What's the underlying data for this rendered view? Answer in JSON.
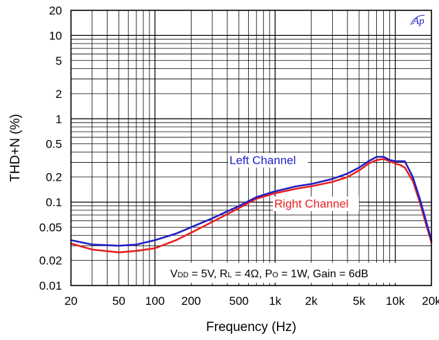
{
  "chart_data": {
    "type": "line",
    "xlabel": "Frequency (Hz)",
    "ylabel": "THD+N (%)",
    "x_scale": "log",
    "y_scale": "log",
    "xlim": [
      20,
      20000
    ],
    "ylim": [
      0.01,
      20
    ],
    "x_ticks": [
      {
        "value": 20,
        "label": "20"
      },
      {
        "value": 50,
        "label": "50"
      },
      {
        "value": 100,
        "label": "100"
      },
      {
        "value": 200,
        "label": "200"
      },
      {
        "value": 500,
        "label": "500"
      },
      {
        "value": 1000,
        "label": "1k"
      },
      {
        "value": 2000,
        "label": "2k"
      },
      {
        "value": 5000,
        "label": "5k"
      },
      {
        "value": 10000,
        "label": "10k"
      },
      {
        "value": 20000,
        "label": "20k"
      }
    ],
    "y_ticks": [
      {
        "value": 0.01,
        "label": "0.01"
      },
      {
        "value": 0.02,
        "label": "0.02"
      },
      {
        "value": 0.05,
        "label": "0.05"
      },
      {
        "value": 0.1,
        "label": "0.1"
      },
      {
        "value": 0.2,
        "label": "0.2"
      },
      {
        "value": 0.5,
        "label": "0.5"
      },
      {
        "value": 1,
        "label": "1"
      },
      {
        "value": 2,
        "label": "2"
      },
      {
        "value": 5,
        "label": "5"
      },
      {
        "value": 10,
        "label": "10"
      },
      {
        "value": 20,
        "label": "20"
      }
    ],
    "grid": true,
    "series": [
      {
        "name": "Left Channel",
        "color": "#2020c8",
        "x": [
          20,
          30,
          50,
          70,
          100,
          150,
          200,
          300,
          500,
          700,
          1000,
          1500,
          2000,
          3000,
          4000,
          5000,
          6000,
          7000,
          8000,
          9000,
          10000,
          11000,
          12000,
          14000,
          16000,
          18000,
          20000
        ],
        "y": [
          0.035,
          0.031,
          0.03,
          0.031,
          0.035,
          0.042,
          0.05,
          0.064,
          0.09,
          0.115,
          0.135,
          0.155,
          0.165,
          0.19,
          0.22,
          0.26,
          0.31,
          0.35,
          0.35,
          0.32,
          0.31,
          0.31,
          0.31,
          0.2,
          0.11,
          0.06,
          0.035
        ]
      },
      {
        "name": "Right Channel",
        "color": "#e82020",
        "x": [
          20,
          30,
          50,
          70,
          100,
          150,
          200,
          300,
          500,
          700,
          1000,
          1500,
          2000,
          3000,
          4000,
          5000,
          6000,
          7000,
          8000,
          9000,
          10000,
          11000,
          12000,
          14000,
          16000,
          18000,
          20000
        ],
        "y": [
          0.032,
          0.027,
          0.025,
          0.026,
          0.028,
          0.035,
          0.043,
          0.058,
          0.085,
          0.11,
          0.128,
          0.145,
          0.155,
          0.175,
          0.2,
          0.24,
          0.29,
          0.32,
          0.33,
          0.31,
          0.29,
          0.28,
          0.26,
          0.18,
          0.1,
          0.055,
          0.033
        ]
      }
    ],
    "annotation": {
      "parts": [
        {
          "t": "V",
          "sub": false
        },
        {
          "t": "DD",
          "sub": true
        },
        {
          "t": " = 5V, R",
          "sub": false
        },
        {
          "t": "L",
          "sub": true
        },
        {
          "t": " = 4Ω, P",
          "sub": false
        },
        {
          "t": "O",
          "sub": true
        },
        {
          "t": " = 1W, Gain = 6dB",
          "sub": false
        }
      ]
    },
    "logo_text": "Ap"
  }
}
